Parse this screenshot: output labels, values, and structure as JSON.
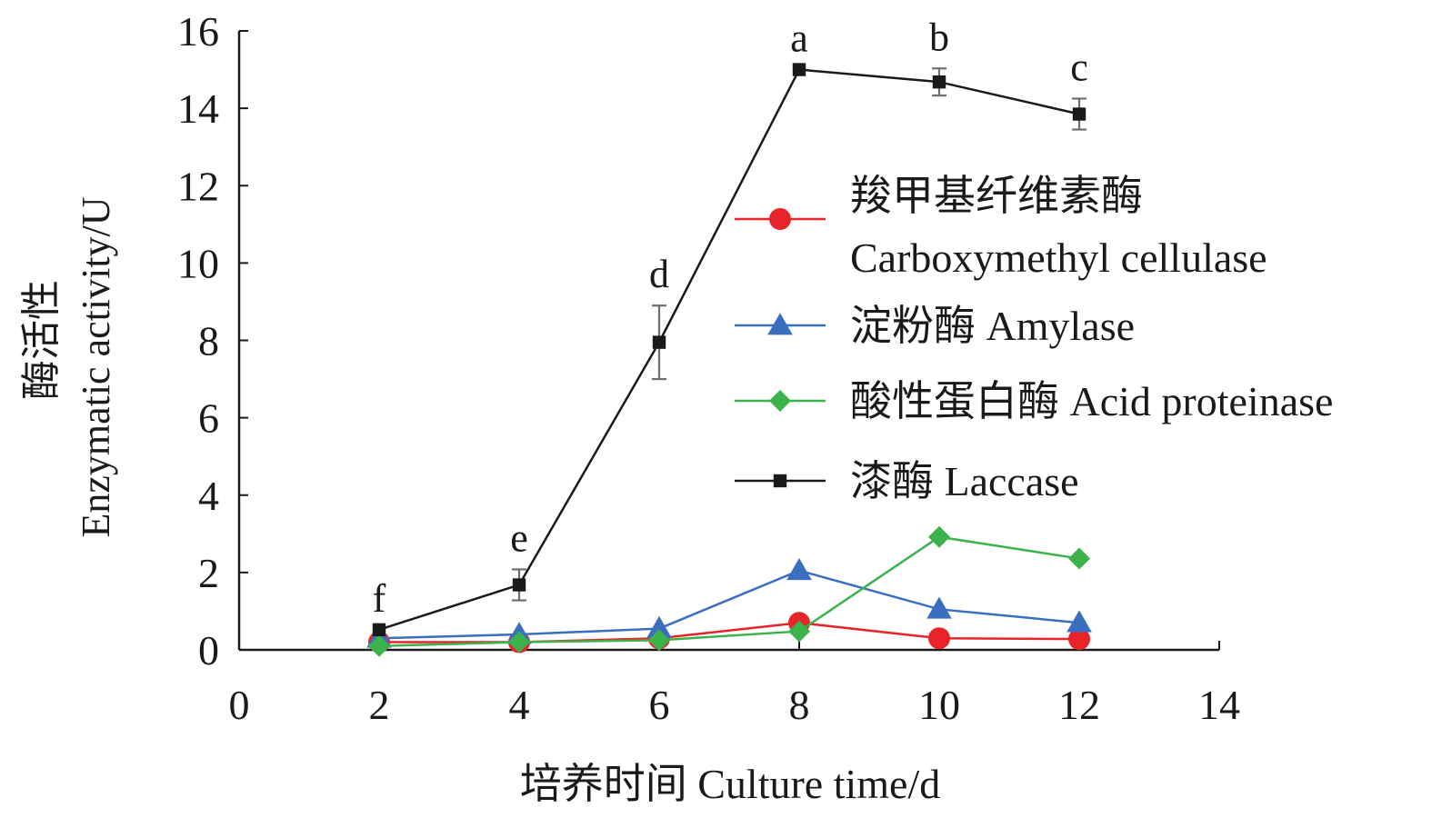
{
  "chart_data": {
    "type": "line",
    "xlabel": "培养时间 Culture time/d",
    "ylabel_cn": "酶活性",
    "ylabel_en": "Enzymatic activity/U",
    "xlim": [
      0,
      14
    ],
    "ylim": [
      0,
      16
    ],
    "x_ticks": [
      "0",
      "2",
      "4",
      "6",
      "8",
      "10",
      "12",
      "14"
    ],
    "y_ticks": [
      "0",
      "2",
      "4",
      "6",
      "8",
      "10",
      "12",
      "14",
      "16"
    ],
    "grid": false,
    "legend_position": "right-middle",
    "series": [
      {
        "name_cn": "羧甲基纤维素酶",
        "name_en": "Carboxymethyl cellulase",
        "marker": "circle",
        "color": "#e8232a",
        "x": [
          2,
          4,
          6,
          8,
          10,
          12
        ],
        "y": [
          0.2,
          0.2,
          0.3,
          0.7,
          0.3,
          0.28
        ]
      },
      {
        "name": "淀粉酶 Amylase",
        "marker": "triangle",
        "color": "#3a6fbf",
        "x": [
          2,
          4,
          6,
          8,
          10,
          12
        ],
        "y": [
          0.3,
          0.4,
          0.55,
          2.05,
          1.05,
          0.7
        ]
      },
      {
        "name": "酸性蛋白酶 Acid proteinase",
        "marker": "diamond",
        "color": "#3bb24a",
        "x": [
          2,
          4,
          6,
          8,
          10,
          12
        ],
        "y": [
          0.1,
          0.2,
          0.25,
          0.48,
          2.92,
          2.36
        ]
      },
      {
        "name": "漆酶 Laccase",
        "marker": "square",
        "color": "#1a1a1a",
        "x": [
          2,
          4,
          6,
          8,
          10,
          12
        ],
        "y": [
          0.52,
          1.68,
          7.95,
          15.0,
          14.68,
          13.85
        ],
        "error": [
          0,
          0.4,
          0.95,
          0,
          0.35,
          0.4
        ],
        "labels": [
          "f",
          "e",
          "d",
          "a",
          "b",
          "c"
        ]
      }
    ]
  }
}
